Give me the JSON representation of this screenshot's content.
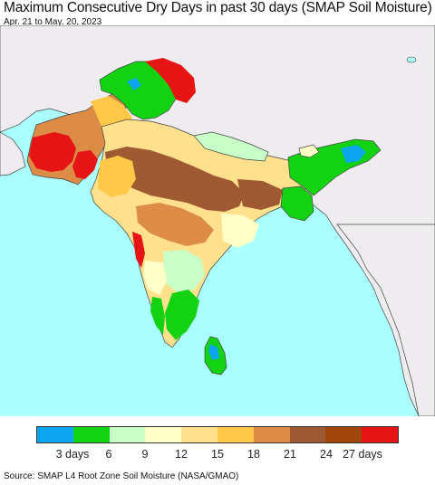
{
  "title": "Maximum Consecutive Dry Days in past 30 days (SMAP Soil Moisture)",
  "subtitle": "Apr. 21 to May. 20, 2023",
  "source": "Source: SMAP L4 Root Zone Soil Moisture (NASA/GMAO)",
  "colors": {
    "ocean": "#aaffff",
    "land_outside": "#efecef",
    "border": "#444444"
  },
  "legend": {
    "colors": [
      "#0ba5f0",
      "#12d212",
      "#c8ffc8",
      "#ffffc8",
      "#ffe08c",
      "#ffc846",
      "#dc8c46",
      "#a05a32",
      "#a0460a",
      "#e61414"
    ],
    "labels": [
      {
        "text": "3 days",
        "pos": 1
      },
      {
        "text": "6",
        "pos": 2
      },
      {
        "text": "9",
        "pos": 3
      },
      {
        "text": "12",
        "pos": 4
      },
      {
        "text": "15",
        "pos": 5
      },
      {
        "text": "18",
        "pos": 6
      },
      {
        "text": "21",
        "pos": 7
      },
      {
        "text": "24",
        "pos": 8
      },
      {
        "text": "27 days",
        "pos": 9
      }
    ]
  }
}
